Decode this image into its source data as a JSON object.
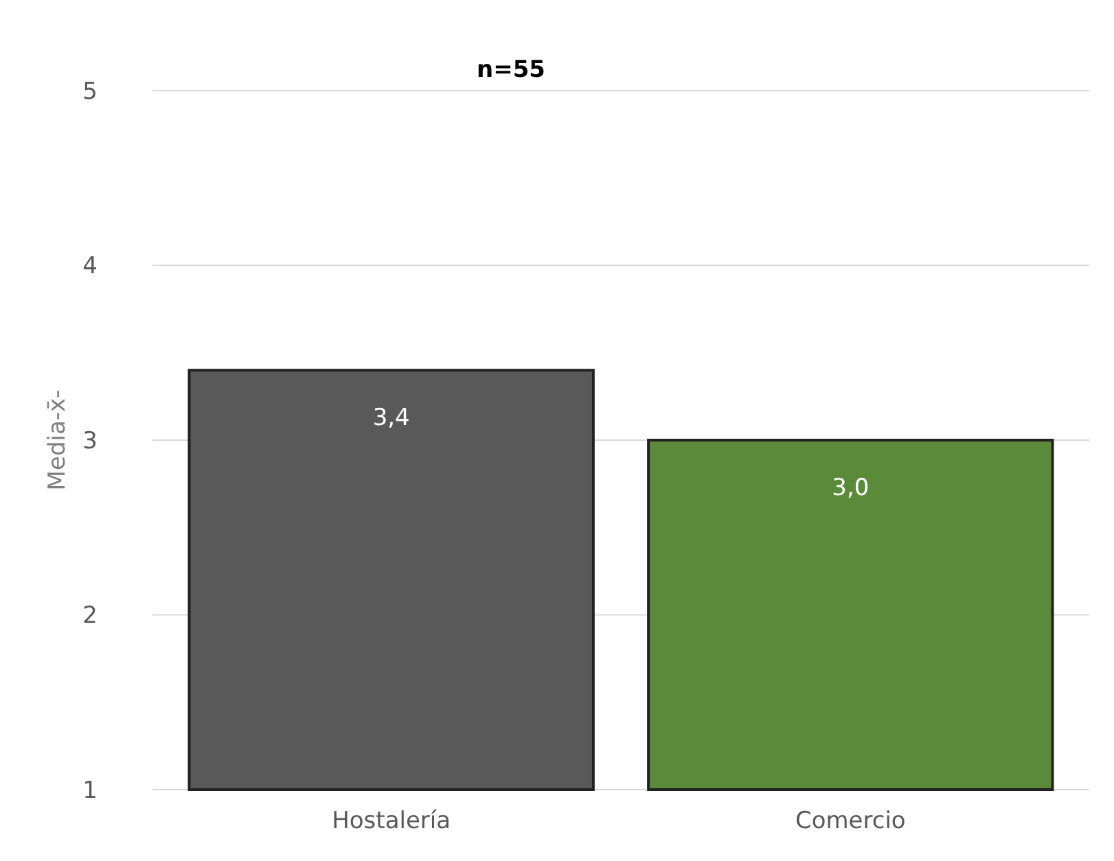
{
  "chart_data": {
    "type": "bar",
    "title": "n=55",
    "ylabel": "Media-x̄-",
    "categories": [
      "Hostalería",
      "Comercio"
    ],
    "values": [
      3.4,
      3.0
    ],
    "colors": [
      "#595959",
      "#5a8a3a"
    ],
    "value_labels": [
      "3,4",
      "3,0"
    ],
    "ylim": [
      1,
      5
    ],
    "yticks": [
      1,
      2,
      3,
      4,
      5
    ],
    "grid": "y"
  }
}
